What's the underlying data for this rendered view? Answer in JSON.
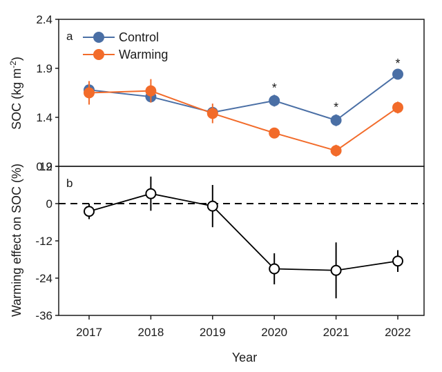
{
  "chart_data": [
    {
      "panel": "a",
      "type": "line",
      "ylabel": "SOC (kg m⁻²)",
      "ylabel_main": "SOC (kg m",
      "ylabel_sup": "-2",
      "ylabel_close": ")",
      "ylim": [
        0.9,
        2.4
      ],
      "yticks": [
        "0.9",
        "1.4",
        "1.9",
        "2.4"
      ],
      "ytick_values": [
        0.9,
        1.4,
        1.9,
        2.4
      ],
      "categories": [
        "2017",
        "2018",
        "2019",
        "2020",
        "2021",
        "2022"
      ],
      "legend_position": "top-left",
      "series": [
        {
          "name": "Control",
          "color": "#4a6fa5",
          "values": [
            1.68,
            1.61,
            1.45,
            1.57,
            1.37,
            1.84
          ],
          "errors": [
            0.07,
            0.05,
            0.05,
            0.06,
            0.06,
            0.04
          ]
        },
        {
          "name": "Warming",
          "color": "#f26b2a",
          "values": [
            1.65,
            1.67,
            1.44,
            1.24,
            1.06,
            1.5
          ],
          "errors": [
            0.12,
            0.12,
            0.1,
            0.04,
            0.06,
            0.06
          ]
        }
      ],
      "significance": [
        {
          "category": "2020",
          "label": "*"
        },
        {
          "category": "2021",
          "label": "*"
        },
        {
          "category": "2022",
          "label": "*"
        }
      ]
    },
    {
      "panel": "b",
      "type": "line",
      "ylabel": "Warming effect on SOC (%)",
      "xlabel": "Year",
      "ylim": [
        -36,
        12
      ],
      "yticks": [
        "12",
        "0",
        "-12",
        "-24",
        "-36"
      ],
      "ytick_values": [
        12,
        0,
        -12,
        -24,
        -36
      ],
      "reference_line": 0,
      "categories": [
        "2017",
        "2018",
        "2019",
        "2020",
        "2021",
        "2022"
      ],
      "series": [
        {
          "name": "Warming effect",
          "color": "#000000",
          "values": [
            -2.5,
            3.2,
            -0.8,
            -21.0,
            -21.5,
            -18.5
          ],
          "errors": [
            2.5,
            5.5,
            6.8,
            5.0,
            9.0,
            3.5
          ]
        }
      ]
    }
  ]
}
